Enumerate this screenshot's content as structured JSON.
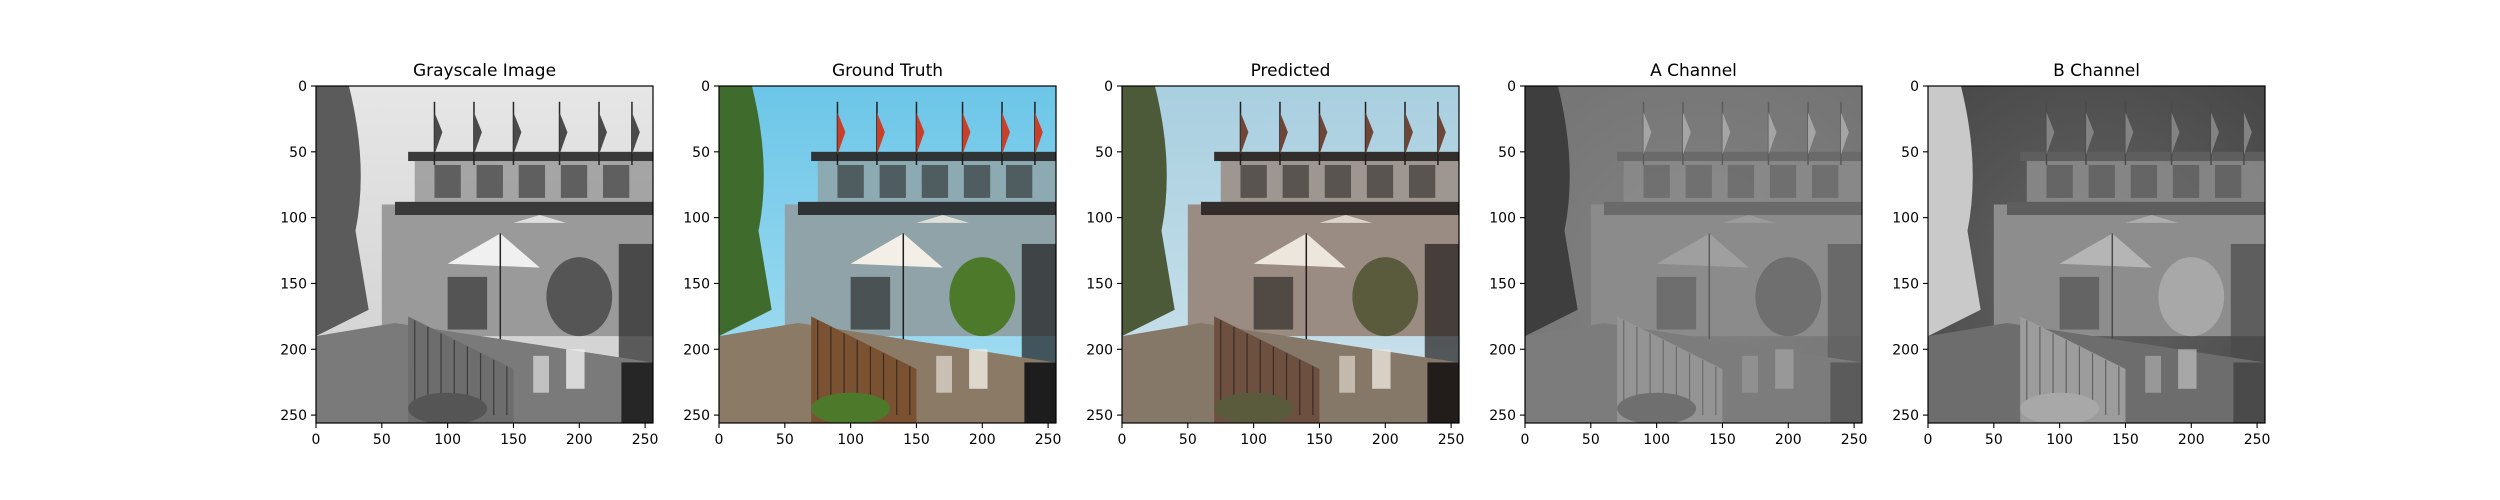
{
  "figure": {
    "panels": [
      {
        "title": "Grayscale Image",
        "kind": "grayscale"
      },
      {
        "title": "Ground Truth",
        "kind": "color"
      },
      {
        "title": "Predicted",
        "kind": "predicted"
      },
      {
        "title": "A Channel",
        "kind": "a-channel"
      },
      {
        "title": "B Channel",
        "kind": "b-channel"
      }
    ],
    "x_ticks": [
      0,
      50,
      100,
      150,
      200,
      250
    ],
    "y_ticks": [
      0,
      50,
      100,
      150,
      200,
      250
    ],
    "axis_range": [
      0,
      256
    ]
  }
}
